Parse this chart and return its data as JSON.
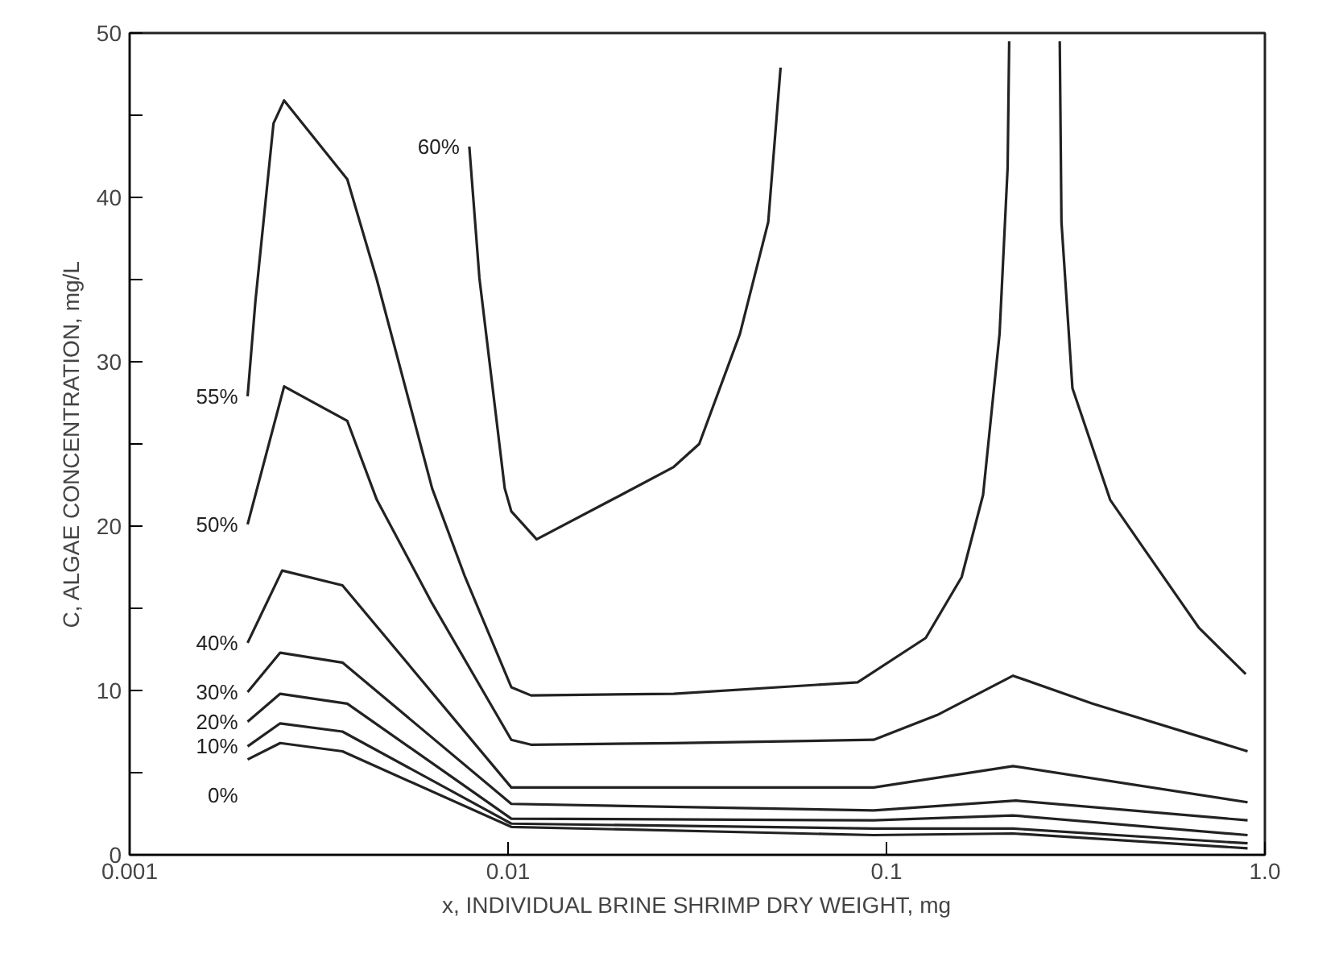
{
  "chart_data": {
    "type": "line",
    "xlabel": "x, INDIVIDUAL BRINE SHRIMP DRY WEIGHT, mg",
    "ylabel": "C, ALGAE CONCENTRATION, mg/L",
    "log": "x",
    "grid": false,
    "marker": "none",
    "line_style": "solid",
    "xlim": [
      0.001,
      1
    ],
    "xticks": [
      0.001,
      0.01,
      0.1,
      {
        "value": 1,
        "label": "1.0"
      }
    ],
    "ylim": [
      0,
      50
    ],
    "yticks": [
      0,
      {
        "value": 5,
        "label": null
      },
      10,
      {
        "value": 15,
        "label": null
      },
      20,
      {
        "value": 25,
        "label": null
      },
      30,
      {
        "value": 35,
        "label": null
      },
      40,
      {
        "value": 45,
        "label": null
      },
      50
    ],
    "series": [
      {
        "name": "60%",
        "color": "#222222",
        "x": [
          0.0079,
          0.0084,
          0.0098,
          0.0102,
          0.0119,
          0.0199,
          0.0274,
          0.032,
          0.041,
          0.0487,
          0.0525
        ],
        "values": [
          43.1,
          35.1,
          22.3,
          20.9,
          19.2,
          21.9,
          23.6,
          25,
          31.7,
          38.5,
          47.9
        ]
      },
      {
        "name": "55%",
        "color": "#222222",
        "x": [
          0.00205,
          0.00215,
          0.0024,
          0.00256,
          0.00376,
          0.0045,
          0.0063,
          0.0077,
          0.0102,
          0.0115,
          0.0274,
          0.0839,
          0.127,
          0.158,
          0.18,
          0.199,
          0.209,
          0.211,
          0.25,
          0.287,
          0.29,
          0.31,
          0.39,
          0.48,
          0.67,
          0.89
        ],
        "values": [
          27.9,
          33.7,
          44.5,
          45.9,
          41.1,
          35,
          22.3,
          16.9,
          10.2,
          9.7,
          9.8,
          10.5,
          13.2,
          16.9,
          21.9,
          31.7,
          41.8,
          49.5,
          null,
          49.5,
          38.5,
          28.4,
          21.6,
          18.6,
          13.8,
          11.0
        ]
      },
      {
        "name": "50%",
        "color": "#222222",
        "x": [
          0.00205,
          0.00256,
          0.00376,
          0.0045,
          0.0063,
          0.0102,
          0.0115,
          0.0274,
          0.0925,
          0.136,
          0.216,
          0.35,
          0.9
        ],
        "values": [
          20.1,
          28.5,
          26.4,
          21.6,
          15.3,
          7.0,
          6.7,
          6.8,
          7.0,
          8.5,
          10.9,
          9.2,
          6.3
        ]
      },
      {
        "name": "40%",
        "color": "#222222",
        "x": [
          0.00205,
          0.00253,
          0.00365,
          0.0102,
          0.014,
          0.0925,
          0.216,
          0.9
        ],
        "values": [
          12.9,
          17.3,
          16.4,
          4.1,
          4.1,
          4.1,
          5.4,
          3.2
        ]
      },
      {
        "name": "30%",
        "color": "#222222",
        "x": [
          0.00205,
          0.0025,
          0.00365,
          0.0102,
          0.0925,
          0.22,
          0.9
        ],
        "values": [
          9.9,
          12.3,
          11.7,
          3.1,
          2.7,
          3.3,
          2.1
        ]
      },
      {
        "name": "20%",
        "color": "#222222",
        "x": [
          0.00205,
          0.0025,
          0.00376,
          0.0102,
          0.0925,
          0.216,
          0.9
        ],
        "values": [
          8.1,
          9.8,
          9.2,
          2.2,
          2.1,
          2.4,
          1.2
        ]
      },
      {
        "name": "10%",
        "color": "#222222",
        "x": [
          0.00205,
          0.0025,
          0.00365,
          0.0102,
          0.0925,
          0.216,
          0.9
        ],
        "values": [
          6.6,
          8.0,
          7.5,
          1.9,
          1.6,
          1.6,
          0.7
        ]
      },
      {
        "name": "0%",
        "color": "#222222",
        "x": [
          0.00205,
          0.0025,
          0.00365,
          0.0102,
          0.0925,
          0.216,
          0.9
        ],
        "values": [
          5.8,
          6.8,
          6.3,
          1.7,
          1.2,
          1.3,
          0.4
        ]
      }
    ]
  }
}
